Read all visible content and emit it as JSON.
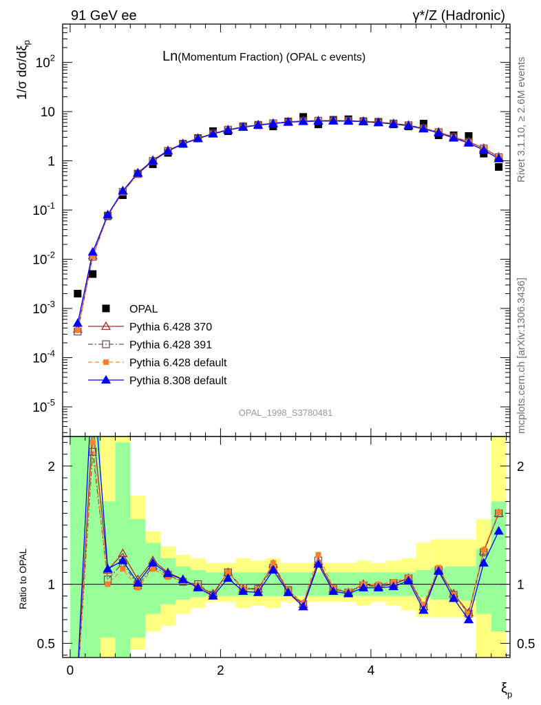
{
  "header": {
    "left": "91 GeV ee",
    "right_prefix": "γ*/Z",
    "right_suffix": " (Hadronic)"
  },
  "main_title": {
    "prefix": "Ln",
    "rest": "(Momentum Fraction) (OPAL c events)"
  },
  "side_text": {
    "top": "Rivet 3.1.10, ≥ 2.6M events",
    "bottom": "mcplots.cern.ch [arXiv:1306.3436]"
  },
  "analysis_label": "OPAL_1998_S3780481",
  "chart_data": [
    {
      "type": "scatter",
      "panel": "main",
      "ylabel": "1/σ dσ/dξp",
      "yscale": "log",
      "xlim": [
        -0.1,
        5.85
      ],
      "ylim": [
        2.5e-06,
        600
      ],
      "y_tick_labels": [
        "10^-5",
        "10^-4",
        "10^-3",
        "10^-2",
        "10^-1",
        "1",
        "10",
        "10^2"
      ],
      "legend_position": "lower-left",
      "x": [
        0.1,
        0.3,
        0.5,
        0.7,
        0.9,
        1.1,
        1.3,
        1.5,
        1.7,
        1.9,
        2.1,
        2.3,
        2.5,
        2.7,
        2.9,
        3.1,
        3.3,
        3.5,
        3.7,
        3.9,
        4.1,
        4.3,
        4.5,
        4.7,
        4.9,
        5.1,
        5.3,
        5.5,
        5.7
      ],
      "series": [
        {
          "name": "OPAL",
          "color": "#000000",
          "marker": "square-filled",
          "values": [
            0.002,
            0.005,
            0.075,
            0.2,
            0.55,
            0.85,
            1.45,
            2.2,
            2.9,
            4.0,
            4.0,
            5.0,
            5.3,
            5.0,
            6.3,
            7.8,
            5.5,
            6.8,
            7.0,
            6.3,
            6.2,
            5.5,
            5.0,
            5.7,
            3.3,
            3.3,
            3.2,
            1.4,
            0.75
          ]
        },
        {
          "name": "Pythia 6.428 370",
          "color": "#a52a2a",
          "marker": "triangle-open",
          "line": "solid",
          "values": [
            0.00038,
            0.0118,
            0.079,
            0.245,
            0.57,
            1.03,
            1.62,
            2.25,
            2.88,
            3.6,
            4.3,
            4.9,
            5.4,
            5.8,
            6.2,
            6.45,
            6.55,
            6.6,
            6.55,
            6.4,
            6.1,
            5.75,
            5.3,
            4.6,
            3.85,
            3.05,
            2.45,
            1.8,
            1.2
          ]
        },
        {
          "name": "Pythia 6.428 391",
          "color": "#705050",
          "marker": "square-open",
          "line": "dash-dot",
          "values": [
            0.00034,
            0.0112,
            0.077,
            0.233,
            0.54,
            0.99,
            1.58,
            2.22,
            2.86,
            3.58,
            4.28,
            4.88,
            5.38,
            5.78,
            6.18,
            6.42,
            6.52,
            6.58,
            6.52,
            6.38,
            6.08,
            5.72,
            5.28,
            4.58,
            3.82,
            3.02,
            2.42,
            1.78,
            1.18
          ]
        },
        {
          "name": "Pythia 6.428 default",
          "color": "#ff7f2a",
          "marker": "square-filled-small",
          "line": "dashed",
          "values": [
            0.00036,
            0.0115,
            0.076,
            0.23,
            0.53,
            0.98,
            1.57,
            2.2,
            2.85,
            3.56,
            4.26,
            4.86,
            5.36,
            5.76,
            6.16,
            6.4,
            6.5,
            6.56,
            6.5,
            6.36,
            6.06,
            5.7,
            5.26,
            4.56,
            3.8,
            3.0,
            2.4,
            1.76,
            1.17
          ]
        },
        {
          "name": "Pythia 8.308 default",
          "color": "#0000ff",
          "marker": "triangle-filled",
          "line": "solid",
          "values": [
            0.0005,
            0.014,
            0.08,
            0.245,
            0.56,
            1.0,
            1.58,
            2.2,
            2.82,
            3.52,
            4.2,
            4.8,
            5.3,
            5.7,
            6.1,
            6.3,
            6.4,
            6.45,
            6.4,
            6.25,
            5.95,
            5.6,
            5.15,
            4.45,
            3.7,
            2.9,
            2.3,
            1.65,
            1.1
          ]
        }
      ]
    },
    {
      "type": "line",
      "panel": "ratio",
      "xlabel": "ξp",
      "ylabel": "Ratio to OPAL",
      "ylim": [
        0.38,
        2.25
      ],
      "y_ticks": [
        0.5,
        1,
        2
      ],
      "x_ticks": [
        0,
        2,
        4
      ],
      "xlim": [
        -0.1,
        5.85
      ],
      "reference_line": 1,
      "x": [
        0.1,
        0.3,
        0.5,
        0.7,
        0.9,
        1.1,
        1.3,
        1.5,
        1.7,
        1.9,
        2.1,
        2.3,
        2.5,
        2.7,
        2.9,
        3.1,
        3.3,
        3.5,
        3.7,
        3.9,
        4.1,
        4.3,
        4.5,
        4.7,
        4.9,
        5.1,
        5.3,
        5.5,
        5.7
      ],
      "bands": [
        {
          "name": "OPAL uncertainty (inner)",
          "color": "#99ff99",
          "bins": [
            [
              0.0,
              0.2,
              0.0,
              3.0
            ],
            [
              0.2,
              0.4,
              0.0,
              3.0
            ],
            [
              0.4,
              0.6,
              0.55,
              1.7
            ],
            [
              0.6,
              0.8,
              0.38,
              2.2
            ],
            [
              0.8,
              1.0,
              0.55,
              1.55
            ],
            [
              1.0,
              1.2,
              0.75,
              1.35
            ],
            [
              1.2,
              1.4,
              0.83,
              1.22
            ],
            [
              1.4,
              1.6,
              0.87,
              1.15
            ],
            [
              1.6,
              1.8,
              0.89,
              1.12
            ],
            [
              1.8,
              2.0,
              0.9,
              1.1
            ],
            [
              2.0,
              2.2,
              0.9,
              1.1
            ],
            [
              2.2,
              2.4,
              0.9,
              1.1
            ],
            [
              2.4,
              2.6,
              0.9,
              1.1
            ],
            [
              2.6,
              2.8,
              0.9,
              1.1
            ],
            [
              2.8,
              3.0,
              0.9,
              1.1
            ],
            [
              3.0,
              3.2,
              0.9,
              1.1
            ],
            [
              3.2,
              3.4,
              0.9,
              1.1
            ],
            [
              3.4,
              3.6,
              0.9,
              1.1
            ],
            [
              3.6,
              3.8,
              0.9,
              1.1
            ],
            [
              3.8,
              4.0,
              0.9,
              1.1
            ],
            [
              4.0,
              4.2,
              0.9,
              1.1
            ],
            [
              4.2,
              4.4,
              0.9,
              1.1
            ],
            [
              4.4,
              4.6,
              0.9,
              1.1
            ],
            [
              4.6,
              4.8,
              0.89,
              1.12
            ],
            [
              4.8,
              5.0,
              0.87,
              1.14
            ],
            [
              5.0,
              5.2,
              0.87,
              1.15
            ],
            [
              5.2,
              5.4,
              0.86,
              1.15
            ],
            [
              5.4,
              5.6,
              0.75,
              1.3
            ],
            [
              5.6,
              5.8,
              0.6,
              1.7
            ]
          ]
        },
        {
          "name": "OPAL uncertainty (outer)",
          "color": "#ffff80",
          "bins": [
            [
              0.0,
              0.2,
              0.0,
              3.0
            ],
            [
              0.2,
              0.4,
              0.0,
              3.0
            ],
            [
              0.4,
              0.6,
              0.0,
              3.0
            ],
            [
              0.6,
              0.8,
              0.38,
              3.0
            ],
            [
              0.8,
              1.0,
              0.45,
              1.75
            ],
            [
              1.0,
              1.2,
              0.6,
              1.45
            ],
            [
              1.2,
              1.4,
              0.65,
              1.32
            ],
            [
              1.4,
              1.6,
              0.75,
              1.25
            ],
            [
              1.6,
              1.8,
              0.8,
              1.22
            ],
            [
              1.8,
              2.0,
              0.85,
              1.18
            ],
            [
              2.0,
              2.2,
              0.85,
              1.18
            ],
            [
              2.2,
              2.4,
              0.8,
              1.22
            ],
            [
              2.4,
              2.6,
              0.82,
              1.2
            ],
            [
              2.6,
              2.8,
              0.8,
              1.22
            ],
            [
              2.8,
              3.0,
              0.85,
              1.18
            ],
            [
              3.0,
              3.2,
              0.85,
              1.18
            ],
            [
              3.2,
              3.4,
              0.85,
              1.18
            ],
            [
              3.4,
              3.6,
              0.85,
              1.18
            ],
            [
              3.6,
              3.8,
              0.85,
              1.18
            ],
            [
              3.8,
              4.0,
              0.82,
              1.2
            ],
            [
              4.0,
              4.2,
              0.85,
              1.18
            ],
            [
              4.2,
              4.4,
              0.82,
              1.2
            ],
            [
              4.4,
              4.6,
              0.78,
              1.22
            ],
            [
              4.6,
              4.8,
              0.72,
              1.35
            ],
            [
              4.8,
              5.0,
              0.72,
              1.38
            ],
            [
              5.0,
              5.2,
              0.72,
              1.38
            ],
            [
              5.2,
              5.4,
              0.72,
              1.38
            ],
            [
              5.4,
              5.6,
              0.0,
              1.55
            ],
            [
              5.6,
              5.8,
              0.0,
              3.0
            ]
          ]
        }
      ],
      "series": [
        {
          "name": "Pythia 6.428 370",
          "color": "#a52a2a",
          "marker": "triangle-open",
          "line": "solid",
          "values": [
            0.2,
            2.35,
            1.12,
            1.26,
            1.04,
            1.2,
            1.1,
            1.04,
            0.98,
            0.92,
            1.1,
            0.96,
            0.96,
            1.17,
            0.93,
            0.83,
            1.19,
            0.96,
            0.93,
            1.0,
            0.98,
            1.0,
            1.05,
            0.81,
            1.12,
            0.92,
            0.76,
            1.28,
            1.6
          ]
        },
        {
          "name": "Pythia 6.428 391",
          "color": "#705050",
          "marker": "square-open",
          "line": "dash-dot",
          "values": [
            0.17,
            2.12,
            1.04,
            1.18,
            0.99,
            1.15,
            1.08,
            1.02,
            1.0,
            0.91,
            1.1,
            0.97,
            0.96,
            1.14,
            0.95,
            0.83,
            1.2,
            0.96,
            0.93,
            0.99,
            0.98,
            1.01,
            1.05,
            0.81,
            1.12,
            0.91,
            0.75,
            1.27,
            1.6
          ]
        },
        {
          "name": "Pythia 6.428 default",
          "color": "#ff7f2a",
          "marker": "square-filled-small",
          "line": "dashed",
          "values": [
            0.18,
            2.2,
            1.0,
            1.13,
            0.97,
            1.13,
            1.06,
            1.03,
            0.99,
            0.9,
            1.1,
            0.96,
            0.95,
            1.18,
            0.95,
            0.84,
            1.25,
            0.97,
            0.94,
            1.0,
            1.0,
            1.02,
            1.06,
            0.83,
            1.14,
            0.91,
            0.75,
            1.29,
            1.61
          ]
        },
        {
          "name": "Pythia 8.308 default",
          "color": "#0000ff",
          "marker": "triangle-filled",
          "line": "solid",
          "values": [
            0.25,
            2.8,
            1.13,
            1.2,
            1.01,
            1.18,
            1.09,
            1.04,
            0.97,
            0.9,
            1.05,
            0.94,
            0.93,
            1.12,
            0.93,
            0.81,
            1.17,
            0.94,
            0.92,
            0.97,
            0.97,
            0.98,
            1.03,
            0.78,
            1.11,
            0.88,
            0.7,
            1.18,
            1.45
          ]
        }
      ]
    }
  ]
}
